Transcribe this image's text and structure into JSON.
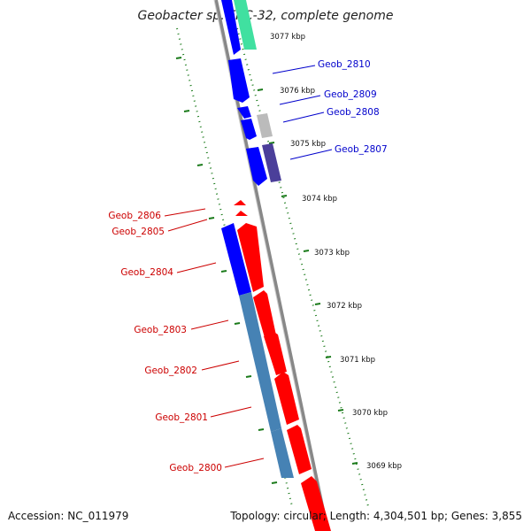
{
  "title": "Geobacter sp. FRC-32, complete genome",
  "accession": "Accession: NC_011979",
  "summary": "Topology: circular; Length: 4,304,501 bp; Genes: 3,855",
  "colors": {
    "forward_strand": "#0000ff",
    "reverse_strand": "#ff0000",
    "steel_blue": "#4682b4",
    "teal": "#40e0a0",
    "gray": "#bbbbbb",
    "slate": "#4b3f9a",
    "label_blue": "#0000cc",
    "label_red": "#cc0000",
    "tick_green": "#1a7a1a",
    "backbone": "#888888"
  },
  "kbp_labels": [
    "3077 kbp",
    "3076 kbp",
    "3075 kbp",
    "3074 kbp",
    "3073 kbp",
    "3072 kbp",
    "3071 kbp",
    "3070 kbp",
    "3069 kbp"
  ],
  "gene_labels_right": [
    "Geob_2810",
    "Geob_2809",
    "Geob_2808",
    "Geob_2807"
  ],
  "gene_labels_left": [
    "Geob_2806",
    "Geob_2805",
    "Geob_2804",
    "Geob_2803",
    "Geob_2802",
    "Geob_2801",
    "Geob_2800"
  ]
}
